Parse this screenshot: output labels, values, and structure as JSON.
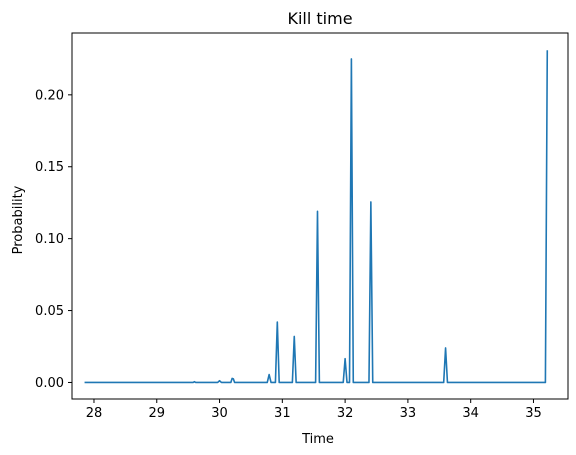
{
  "chart_data": {
    "type": "line",
    "title": "Kill time",
    "xlabel": "Time",
    "ylabel": "Probability",
    "xlim": [
      27.65,
      35.55
    ],
    "ylim": [
      -0.0115,
      0.243
    ],
    "grid": false,
    "legend": "none",
    "colors": {
      "line": "#1f77b4",
      "axes": "#000000",
      "background": "#ffffff"
    },
    "xticks": [
      28,
      29,
      30,
      31,
      32,
      33,
      34,
      35
    ],
    "xtick_labels": [
      "28",
      "29",
      "30",
      "31",
      "32",
      "33",
      "34",
      "35"
    ],
    "yticks": [
      0.0,
      0.05,
      0.1,
      0.15,
      0.2
    ],
    "ytick_labels": [
      "0.00",
      "0.05",
      "0.10",
      "0.15",
      "0.20"
    ],
    "series": [
      {
        "x": [
          27.85,
          29.58,
          29.6,
          29.62,
          29.97,
          30.0,
          30.03,
          30.18,
          30.2,
          30.22,
          30.24,
          30.76,
          30.79,
          30.82,
          30.89,
          30.92,
          30.95,
          31.16,
          31.19,
          31.22,
          31.53,
          31.56,
          31.59,
          31.97,
          32.0,
          32.03,
          32.07,
          32.1,
          32.13,
          32.38,
          32.41,
          32.44,
          33.57,
          33.6,
          33.63,
          35.19,
          35.22
        ],
        "y": [
          0.0,
          0.0,
          0.0005,
          0.0,
          0.0,
          0.0012,
          0.0,
          0.0,
          0.0028,
          0.0025,
          0.0,
          0.0,
          0.0055,
          0.0,
          0.0,
          0.042,
          0.0,
          0.0,
          0.032,
          0.0,
          0.0,
          0.119,
          0.0,
          0.0,
          0.0165,
          0.0,
          0.0,
          0.225,
          0.0,
          0.0,
          0.1255,
          0.0,
          0.0,
          0.024,
          0.0,
          0.0,
          0.231
        ]
      }
    ]
  }
}
